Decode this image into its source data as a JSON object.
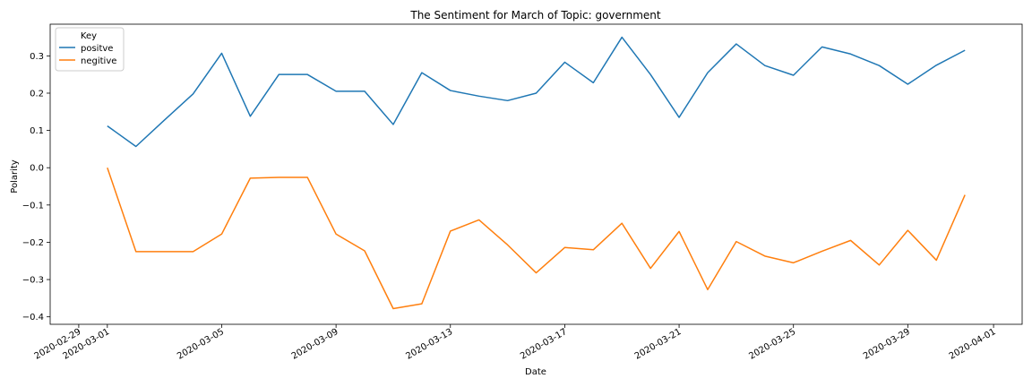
{
  "chart_data": {
    "type": "line",
    "title": "The Sentiment for March of Topic: government",
    "xlabel": "Date",
    "ylabel": "Polarity",
    "x": [
      "2020-03-01",
      "2020-03-02",
      "2020-03-03",
      "2020-03-04",
      "2020-03-05",
      "2020-03-06",
      "2020-03-07",
      "2020-03-08",
      "2020-03-09",
      "2020-03-10",
      "2020-03-11",
      "2020-03-12",
      "2020-03-13",
      "2020-03-14",
      "2020-03-15",
      "2020-03-16",
      "2020-03-17",
      "2020-03-18",
      "2020-03-19",
      "2020-03-20",
      "2020-03-21",
      "2020-03-22",
      "2020-03-23",
      "2020-03-24",
      "2020-03-25",
      "2020-03-26",
      "2020-03-27",
      "2020-03-28",
      "2020-03-29",
      "2020-03-30",
      "2020-03-31"
    ],
    "series": [
      {
        "name": "positve",
        "color": "#1f77b4",
        "values": [
          0.112,
          0.057,
          0.128,
          0.198,
          0.307,
          0.138,
          0.25,
          0.25,
          0.205,
          0.205,
          0.116,
          0.255,
          0.207,
          0.192,
          0.18,
          0.2,
          0.283,
          0.228,
          0.35,
          0.25,
          0.135,
          0.255,
          0.332,
          0.274,
          0.248,
          0.324,
          0.305,
          0.274,
          0.224,
          0.275,
          0.315
        ]
      },
      {
        "name": "negitive",
        "color": "#ff7f0e",
        "values": [
          0.0,
          -0.225,
          -0.225,
          -0.225,
          -0.178,
          -0.028,
          -0.026,
          -0.026,
          -0.178,
          -0.223,
          -0.378,
          -0.365,
          -0.17,
          -0.14,
          -0.207,
          -0.282,
          -0.214,
          -0.22,
          -0.149,
          -0.27,
          -0.171,
          -0.327,
          -0.198,
          -0.237,
          -0.255,
          -0.224,
          -0.195,
          -0.261,
          -0.168,
          -0.248,
          -0.073
        ]
      }
    ],
    "xlim": [
      "2020-02-28",
      "2020-04-02"
    ],
    "ylim": [
      -0.42,
      0.385
    ],
    "x_ticks": [
      "2020-02-29",
      "2020-03-01",
      "2020-03-05",
      "2020-03-09",
      "2020-03-13",
      "2020-03-17",
      "2020-03-21",
      "2020-03-25",
      "2020-03-29",
      "2020-04-01"
    ],
    "y_ticks": [
      -0.4,
      -0.3,
      -0.2,
      -0.1,
      0.0,
      0.1,
      0.2,
      0.3
    ],
    "y_tick_labels": [
      "−0.4",
      "−0.3",
      "−0.2",
      "−0.1",
      "0.0",
      "0.1",
      "0.2",
      "0.3"
    ],
    "legend": {
      "title": "Key",
      "placement": "top-left"
    },
    "grid": false
  }
}
